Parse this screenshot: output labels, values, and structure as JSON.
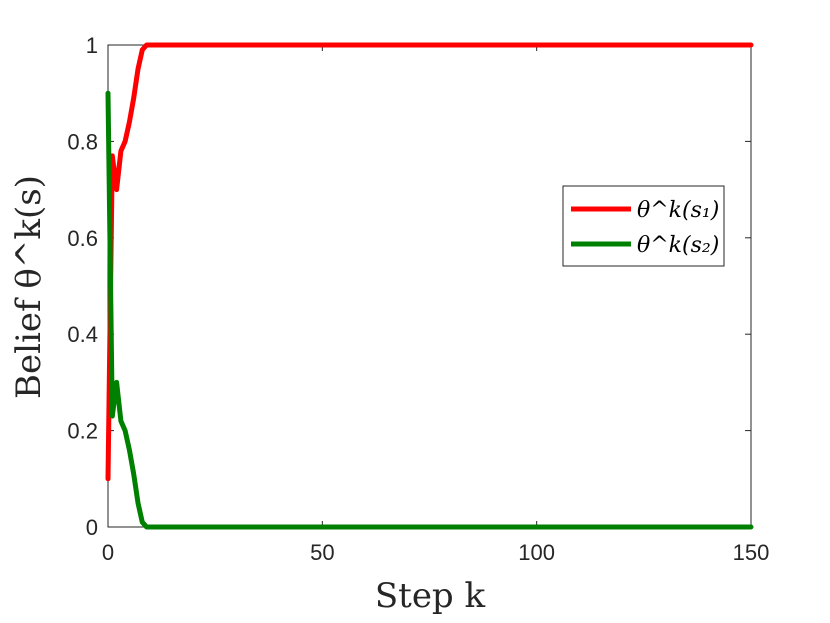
{
  "chart_data": {
    "type": "line",
    "xlabel": "Step k",
    "ylabel": "Belief θ^k(s)",
    "xlim": [
      0,
      150
    ],
    "ylim": [
      0,
      1
    ],
    "x_ticks": [
      0,
      50,
      100,
      150
    ],
    "y_ticks": [
      0,
      0.2,
      0.4,
      0.6,
      0.8,
      1
    ],
    "grid": false,
    "legend_position": "right-middle",
    "series": [
      {
        "name": "θ^k(s₁)",
        "color": "#ff0000",
        "x": [
          0,
          1,
          2,
          3,
          4,
          5,
          6,
          7,
          8,
          9,
          10,
          150
        ],
        "y": [
          0.1,
          0.77,
          0.7,
          0.78,
          0.8,
          0.84,
          0.89,
          0.95,
          0.99,
          1.0,
          1.0,
          1.0
        ]
      },
      {
        "name": "θ^k(s₂)",
        "color": "#008000",
        "x": [
          0,
          1,
          2,
          3,
          4,
          5,
          6,
          7,
          8,
          9,
          10,
          150
        ],
        "y": [
          0.9,
          0.23,
          0.3,
          0.22,
          0.2,
          0.16,
          0.11,
          0.05,
          0.01,
          0.0,
          0.0,
          0.0
        ]
      }
    ]
  }
}
